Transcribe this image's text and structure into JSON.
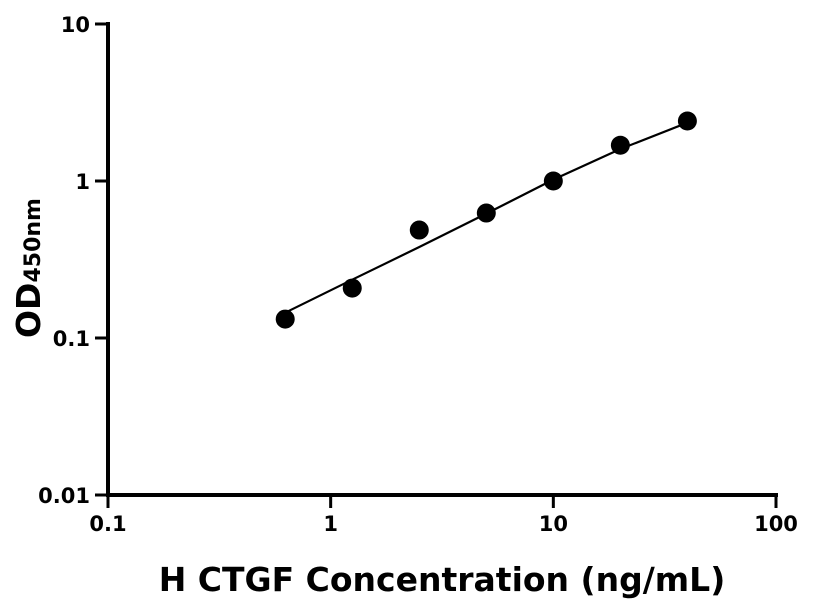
{
  "chart_data": {
    "type": "scatter",
    "title": "",
    "xlabel": "H CTGF Concentration (ng/mL)",
    "ylabel": "OD",
    "ylabel_subscript": "450nm",
    "xscale": "log",
    "yscale": "log",
    "xlim": [
      0.1,
      100
    ],
    "ylim": [
      0.01,
      10
    ],
    "xticks": [
      0.1,
      1,
      10,
      100
    ],
    "xtick_labels": [
      "0.1",
      "1",
      "10",
      "100"
    ],
    "yticks": [
      0.01,
      0.1,
      1,
      10
    ],
    "ytick_labels": [
      "0.01",
      "0.1",
      "1",
      "10"
    ],
    "grid": false,
    "points": {
      "x": [
        0.625,
        1.25,
        2.5,
        5,
        10,
        20,
        40
      ],
      "y": [
        0.132,
        0.208,
        0.487,
        0.625,
        1.0,
        1.69,
        2.41
      ]
    },
    "fit_curve": {
      "x": [
        0.625,
        1.25,
        2.5,
        5,
        10,
        20,
        40
      ],
      "y": [
        0.145,
        0.235,
        0.38,
        0.62,
        1.02,
        1.6,
        2.35
      ]
    },
    "colors": {
      "points": "#000000",
      "line": "#000000"
    }
  }
}
